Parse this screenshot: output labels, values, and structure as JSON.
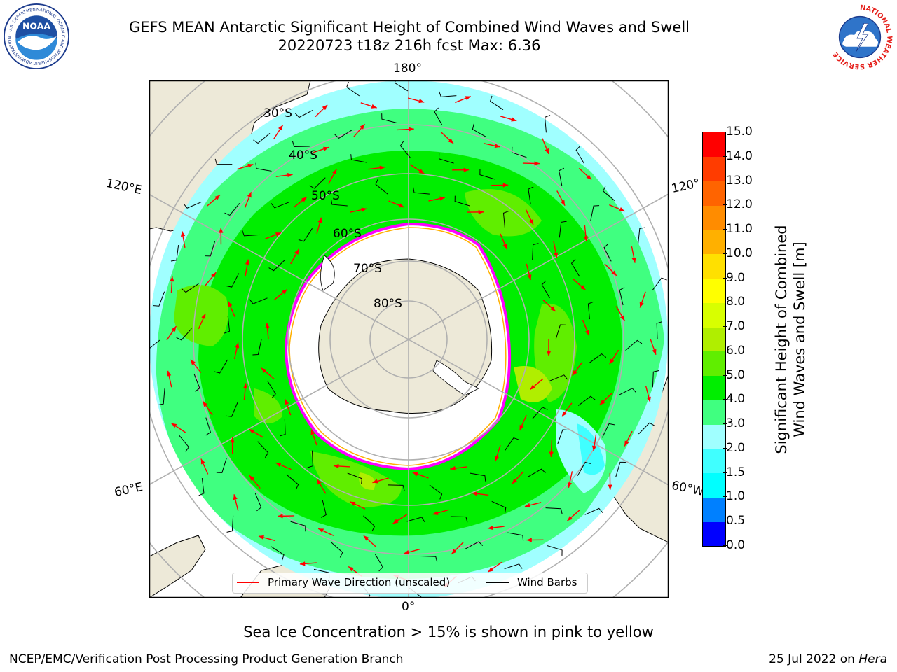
{
  "header": {
    "title_line1": "GEFS MEAN Antarctic Significant Height of Combined Wind Waves and Swell",
    "title_line2": "20220723 t18z 216h fcst   Max: 6.36"
  },
  "logos": {
    "left": "noaa-logo",
    "right": "national-weather-service-logo",
    "left_text": "NATIONAL OCEANIC AND ATMOSPHERIC ADMINISTRATION · U.S. DEPARTMENT OF COMMERCE",
    "left_center_text": "NOAA",
    "right_text": "NATIONAL WEATHER SERVICE"
  },
  "map": {
    "projection": "south-polar-stereographic",
    "longitude_labels": {
      "top": "180°",
      "upper_left": "120°E",
      "upper_right": "120°",
      "lower_left": "60°E",
      "lower_right": "60°W",
      "bottom": "0°"
    },
    "latitude_labels": [
      "30°S",
      "40°S",
      "50°S",
      "60°S",
      "70°S",
      "80°S"
    ],
    "legend": {
      "wave_label": "Primary Wave Direction (unscaled)",
      "wind_label": "Wind Barbs",
      "wave_color": "#ff0000",
      "wind_color": "#000000"
    }
  },
  "colorbar": {
    "label": "Significant Height of Combined Wind Waves and Swell [m]",
    "label_line1": "Significant Height of Combined",
    "label_line2": "Wind Waves and Swell [m]",
    "ticks": [
      "15.0",
      "14.0",
      "13.0",
      "12.0",
      "11.0",
      "10.0",
      "9.0",
      "8.0",
      "7.0",
      "6.0",
      "5.0",
      "4.0",
      "3.0",
      "2.0",
      "1.5",
      "1.0",
      "0.5",
      "0.0"
    ],
    "colors": [
      "#0000ff",
      "#0080ff",
      "#00ffff",
      "#40ffff",
      "#a0ffff",
      "#40ff80",
      "#00ee00",
      "#60ee00",
      "#b0ee00",
      "#d8ff00",
      "#ffff00",
      "#ffe000",
      "#ffb000",
      "#ff8c00",
      "#ff6400",
      "#ff3c00",
      "#ff0000"
    ]
  },
  "colors": {
    "land": "#ede9d8",
    "ocean_0_2": "#a0ffff",
    "ocean_2_3": "#40ff80",
    "ocean_4_5": "#00ee00",
    "ocean_5_6": "#60ee00",
    "ocean_6_7": "#b0ee00",
    "sea_ice": "#ffffff",
    "ice_edge_pink": "#ff00ff",
    "ice_edge_yellow": "#ffb000"
  },
  "footer": {
    "note": "Sea Ice Concentration > 15% is shown in pink to yellow",
    "credit_left": "NCEP/EMC/Verification Post Processing Product Generation Branch",
    "date": "25 Jul 2022 on",
    "host": "Hera"
  }
}
